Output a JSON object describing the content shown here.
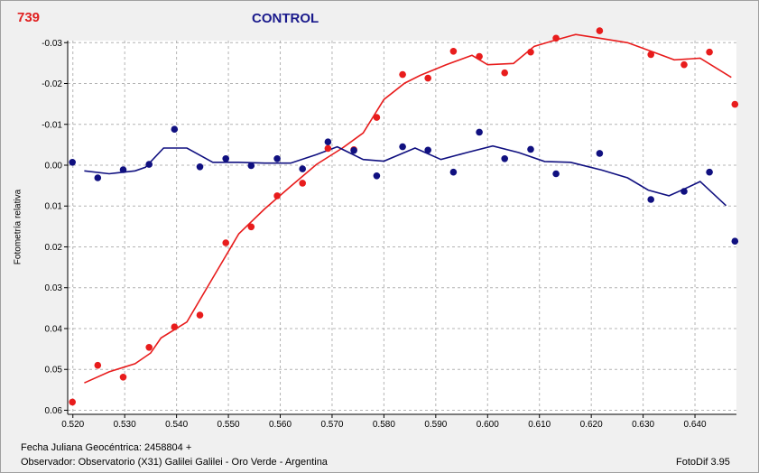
{
  "header": {
    "id_label": "739",
    "title": "CONTROL"
  },
  "footer": {
    "date_label": "Fecha Juliana Geocéntrica: 2458804 +",
    "observer_label": "Observador: Observatorio (X31) Galilei Galilei - Oro Verde - Argentina",
    "software_label": "FotoDif 3.95"
  },
  "colors": {
    "red_series": "#e81c1c",
    "blue_series": "#101080",
    "grid": "#b4b4b4",
    "plot_bg": "#ffffff"
  },
  "chart_data": {
    "type": "scatter",
    "title": "CONTROL",
    "xlabel": "Fecha Juliana Geocéntrica: 2458804 +",
    "ylabel": "Fotometría relativa",
    "xlim": [
      0.519,
      0.648
    ],
    "ylim": [
      0.061,
      -0.0305
    ],
    "y_inverted": true,
    "grid": true,
    "x_ticks": [
      "0.520",
      "0.530",
      "0.540",
      "0.550",
      "0.560",
      "0.570",
      "0.580",
      "0.590",
      "0.600",
      "0.610",
      "0.620",
      "0.630",
      "0.640"
    ],
    "x_tick_values": [
      0.52,
      0.53,
      0.54,
      0.55,
      0.56,
      0.57,
      0.58,
      0.59,
      0.6,
      0.61,
      0.62,
      0.63,
      0.64
    ],
    "y_ticks": [
      "-0.03",
      "-0.02",
      "-0.01",
      "0.00",
      "0.01",
      "0.02",
      "0.03",
      "0.04",
      "0.05",
      "0.06"
    ],
    "y_tick_values": [
      -0.03,
      -0.02,
      -0.01,
      0.0,
      0.01,
      0.02,
      0.03,
      0.04,
      0.05,
      0.06
    ],
    "series": [
      {
        "color": "#e81c1c",
        "points": [
          [
            0.5199,
            0.058
          ],
          [
            0.5248,
            0.049
          ],
          [
            0.5297,
            0.0519
          ],
          [
            0.5347,
            0.0446
          ],
          [
            0.5396,
            0.0396
          ],
          [
            0.5445,
            0.0367
          ],
          [
            0.5495,
            0.019
          ],
          [
            0.5544,
            0.0151
          ],
          [
            0.5594,
            0.0075
          ],
          [
            0.5643,
            0.0044
          ],
          [
            0.5692,
            -0.0041
          ],
          [
            0.5742,
            -0.0038
          ],
          [
            0.5786,
            -0.0117
          ],
          [
            0.5836,
            -0.0222
          ],
          [
            0.5885,
            -0.0213
          ],
          [
            0.5934,
            -0.0279
          ],
          [
            0.5984,
            -0.0266
          ],
          [
            0.6033,
            -0.0226
          ],
          [
            0.6083,
            -0.0277
          ],
          [
            0.6132,
            -0.0311
          ],
          [
            0.6216,
            -0.0329
          ],
          [
            0.6315,
            -0.0271
          ],
          [
            0.6379,
            -0.0246
          ],
          [
            0.6428,
            -0.0277
          ],
          [
            0.6477,
            -0.0149
          ]
        ],
        "trend": [
          [
            0.5222,
            0.0533
          ],
          [
            0.527,
            0.0506
          ],
          [
            0.532,
            0.0486
          ],
          [
            0.535,
            0.046
          ],
          [
            0.537,
            0.0423
          ],
          [
            0.542,
            0.0384
          ],
          [
            0.547,
            0.0276
          ],
          [
            0.552,
            0.0168
          ],
          [
            0.557,
            0.0107
          ],
          [
            0.562,
            0.0052
          ],
          [
            0.567,
            -0.0002
          ],
          [
            0.572,
            -0.0042
          ],
          [
            0.576,
            -0.0079
          ],
          [
            0.58,
            -0.0161
          ],
          [
            0.584,
            -0.0201
          ],
          [
            0.587,
            -0.022
          ],
          [
            0.592,
            -0.0246
          ],
          [
            0.597,
            -0.0269
          ],
          [
            0.6,
            -0.0246
          ],
          [
            0.605,
            -0.0249
          ],
          [
            0.609,
            -0.0291
          ],
          [
            0.613,
            -0.0306
          ],
          [
            0.617,
            -0.032
          ],
          [
            0.622,
            -0.031
          ],
          [
            0.627,
            -0.03
          ],
          [
            0.632,
            -0.0277
          ],
          [
            0.636,
            -0.0258
          ],
          [
            0.641,
            -0.0262
          ],
          [
            0.647,
            -0.0215
          ]
        ]
      },
      {
        "color": "#101080",
        "points": [
          [
            0.5199,
            -0.0007
          ],
          [
            0.5248,
            0.0031
          ],
          [
            0.5297,
            0.0011
          ],
          [
            0.5347,
            -0.0002
          ],
          [
            0.5396,
            -0.0088
          ],
          [
            0.5445,
            0.0004
          ],
          [
            0.5495,
            -0.0016
          ],
          [
            0.5544,
            0.0001
          ],
          [
            0.5594,
            -0.0016
          ],
          [
            0.5643,
            0.0009
          ],
          [
            0.5692,
            -0.0057
          ],
          [
            0.5742,
            -0.0036
          ],
          [
            0.5786,
            0.0026
          ],
          [
            0.5836,
            -0.0045
          ],
          [
            0.5885,
            -0.0037
          ],
          [
            0.5934,
            0.0017
          ],
          [
            0.5984,
            -0.0081
          ],
          [
            0.6033,
            -0.0016
          ],
          [
            0.6083,
            -0.0039
          ],
          [
            0.6132,
            0.0021
          ],
          [
            0.6216,
            -0.0029
          ],
          [
            0.6315,
            0.0084
          ],
          [
            0.6379,
            0.0064
          ],
          [
            0.6428,
            0.0017
          ],
          [
            0.6477,
            0.0186
          ]
        ],
        "trend": [
          [
            0.5222,
            0.0014
          ],
          [
            0.527,
            0.0021
          ],
          [
            0.532,
            0.0014
          ],
          [
            0.534,
            0.0005
          ],
          [
            0.5375,
            -0.0042
          ],
          [
            0.542,
            -0.0042
          ],
          [
            0.547,
            -0.0007
          ],
          [
            0.552,
            -0.0007
          ],
          [
            0.557,
            -0.0005
          ],
          [
            0.562,
            -0.0005
          ],
          [
            0.567,
            -0.0026
          ],
          [
            0.571,
            -0.0045
          ],
          [
            0.576,
            -0.0014
          ],
          [
            0.58,
            -0.001
          ],
          [
            0.586,
            -0.0042
          ],
          [
            0.591,
            -0.0014
          ],
          [
            0.596,
            -0.0031
          ],
          [
            0.601,
            -0.0047
          ],
          [
            0.606,
            -0.0031
          ],
          [
            0.611,
            -0.0009
          ],
          [
            0.616,
            -0.0007
          ],
          [
            0.622,
            0.0012
          ],
          [
            0.627,
            0.0031
          ],
          [
            0.631,
            0.0061
          ],
          [
            0.635,
            0.0075
          ],
          [
            0.638,
            0.0058
          ],
          [
            0.641,
            0.004
          ],
          [
            0.646,
            0.0099
          ]
        ]
      }
    ]
  }
}
